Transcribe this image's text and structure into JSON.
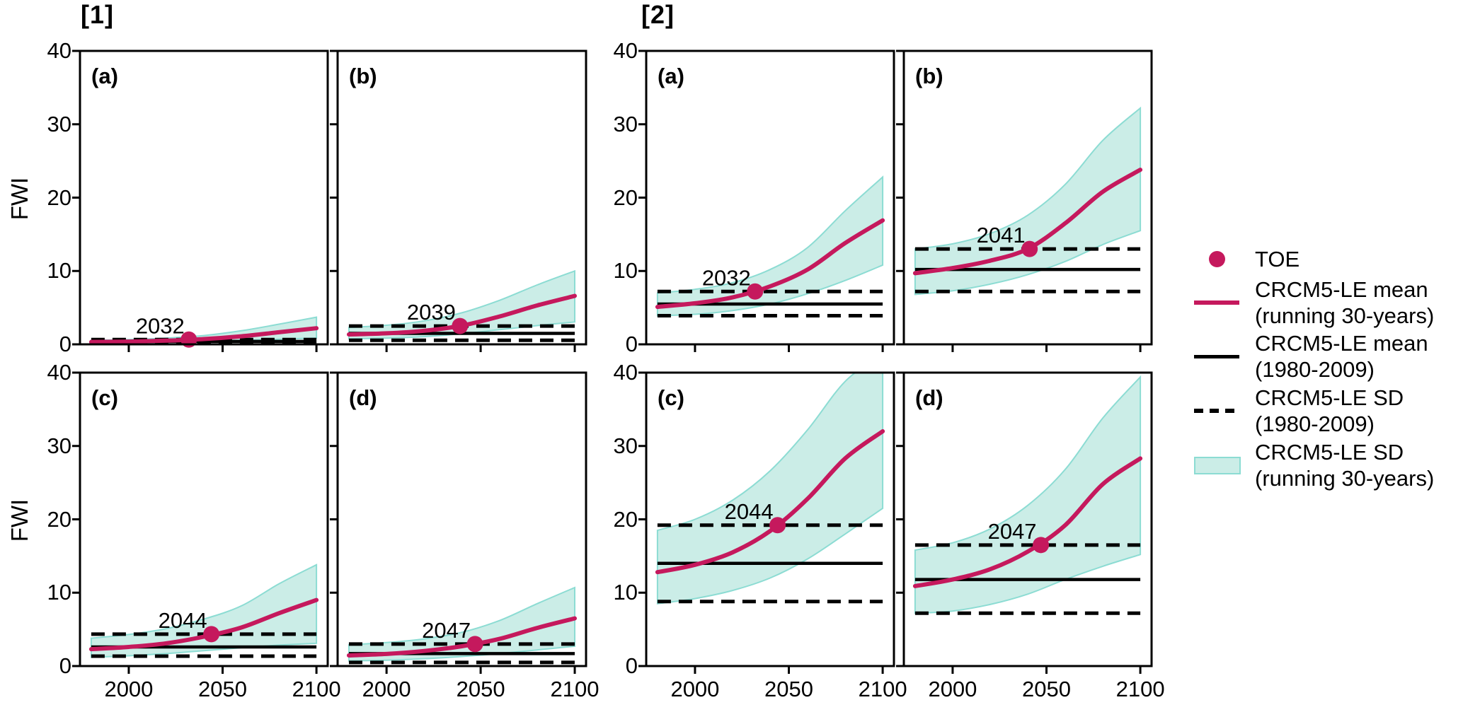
{
  "colors": {
    "crimson": "#C5195D",
    "band_fill": "#CBEDE7",
    "band_edge": "#8CDCD3",
    "axis": "#000000"
  },
  "legend": {
    "items": [
      {
        "line1": "TOE",
        "line2": ""
      },
      {
        "line1": "CRCM5-LE mean",
        "line2": "(running 30-years)"
      },
      {
        "line1": "CRCM5-LE mean",
        "line2": "(1980-2009)"
      },
      {
        "line1": "CRCM5-LE SD",
        "line2": "(1980-2009)"
      },
      {
        "line1": "CRCM5-LE SD",
        "line2": "(running 30-years)"
      }
    ]
  },
  "chart_data": {
    "type": "line",
    "ylabel": "FWI",
    "xlabel": "",
    "xlim": [
      1974,
      2106
    ],
    "ylim": [
      0,
      40
    ],
    "x_ticks": [
      2000,
      2050,
      2100
    ],
    "y_ticks": [
      0,
      10,
      20,
      30,
      40
    ],
    "x_control": [
      1980,
      2000,
      2020,
      2040,
      2060,
      2080,
      2100
    ],
    "groups": [
      {
        "title": "[1]",
        "panels": [
          {
            "label": "(a)",
            "toe": {
              "year": 2032,
              "value": 0.65
            },
            "hist_mean": 0.4,
            "hist_sd_upper": 0.65,
            "hist_sd_lower": 0.15,
            "mean": [
              0.32,
              0.38,
              0.5,
              0.72,
              1.1,
              1.65,
              2.2
            ],
            "band_upper": [
              0.55,
              0.65,
              0.85,
              1.2,
              1.85,
              2.75,
              3.7
            ],
            "band_lower": [
              0.15,
              0.18,
              0.25,
              0.38,
              0.55,
              0.7,
              0.85
            ]
          },
          {
            "label": "(b)",
            "toe": {
              "year": 2039,
              "value": 2.5
            },
            "hist_mean": 1.5,
            "hist_sd_upper": 2.5,
            "hist_sd_lower": 0.55,
            "mean": [
              1.35,
              1.5,
              1.85,
              2.55,
              3.8,
              5.3,
              6.6
            ],
            "band_upper": [
              2.3,
              2.6,
              3.2,
              4.3,
              6.0,
              8.1,
              10.0
            ],
            "band_lower": [
              0.75,
              0.85,
              1.05,
              1.45,
              2.0,
              2.55,
              3.05
            ]
          },
          {
            "label": "(c)",
            "toe": {
              "year": 2044,
              "value": 4.35
            },
            "hist_mean": 2.6,
            "hist_sd_upper": 4.35,
            "hist_sd_lower": 1.35,
            "mean": [
              2.3,
              2.6,
              3.1,
              4.0,
              5.25,
              7.2,
              9.0
            ],
            "band_upper": [
              3.8,
              4.3,
              5.1,
              6.4,
              8.2,
              11.2,
              13.8
            ],
            "band_lower": [
              1.2,
              1.4,
              1.7,
              2.1,
              2.5,
              2.85,
              3.1
            ]
          },
          {
            "label": "(d)",
            "toe": {
              "year": 2047,
              "value": 3.0
            },
            "hist_mean": 1.7,
            "hist_sd_upper": 3.0,
            "hist_sd_lower": 0.5,
            "mean": [
              1.45,
              1.65,
              2.05,
              2.7,
              3.7,
              5.2,
              6.5
            ],
            "band_upper": [
              2.9,
              3.2,
              3.7,
              4.6,
              6.2,
              8.5,
              10.7
            ],
            "band_lower": [
              0.7,
              0.8,
              1.0,
              1.3,
              1.7,
              2.2,
              2.7
            ]
          }
        ]
      },
      {
        "title": "[2]",
        "panels": [
          {
            "label": "(a)",
            "toe": {
              "year": 2032,
              "value": 7.2
            },
            "hist_mean": 5.5,
            "hist_sd_upper": 7.2,
            "hist_sd_lower": 3.9,
            "mean": [
              5.1,
              5.6,
              6.4,
              7.9,
              10.2,
              13.8,
              16.9
            ],
            "band_upper": [
              7.0,
              7.5,
              8.4,
              10.2,
              13.2,
              18.2,
              22.8
            ],
            "band_lower": [
              3.9,
              4.1,
              4.6,
              5.5,
              6.9,
              8.7,
              10.8
            ]
          },
          {
            "label": "(b)",
            "toe": {
              "year": 2041,
              "value": 13.0
            },
            "hist_mean": 10.2,
            "hist_sd_upper": 13.0,
            "hist_sd_lower": 7.2,
            "mean": [
              9.7,
              10.4,
              11.4,
              13.0,
              16.5,
              20.8,
              23.8
            ],
            "band_upper": [
              13.0,
              13.7,
              15.1,
              17.6,
              21.8,
              27.8,
              32.2
            ],
            "band_lower": [
              6.8,
              7.3,
              8.2,
              9.5,
              11.3,
              13.6,
              15.5
            ]
          },
          {
            "label": "(c)",
            "toe": {
              "year": 2044,
              "value": 19.2
            },
            "hist_mean": 14.0,
            "hist_sd_upper": 19.2,
            "hist_sd_lower": 8.8,
            "mean": [
              12.8,
              13.8,
              15.5,
              18.4,
              22.8,
              28.3,
              32.0
            ],
            "band_upper": [
              18.5,
              20.0,
              22.6,
              26.6,
              32.2,
              38.8,
              42.5
            ],
            "band_lower": [
              8.5,
              9.2,
              10.3,
              12.0,
              14.6,
              18.0,
              21.5
            ]
          },
          {
            "label": "(d)",
            "toe": {
              "year": 2047,
              "value": 16.5
            },
            "hist_mean": 11.8,
            "hist_sd_upper": 16.5,
            "hist_sd_lower": 7.2,
            "mean": [
              10.9,
              11.8,
              13.2,
              15.6,
              19.2,
              24.8,
              28.3
            ],
            "band_upper": [
              15.8,
              16.8,
              18.7,
              21.9,
              26.8,
              33.8,
              39.4
            ],
            "band_lower": [
              7.2,
              7.5,
              8.4,
              9.8,
              11.8,
              13.6,
              15.2
            ]
          }
        ]
      }
    ]
  }
}
